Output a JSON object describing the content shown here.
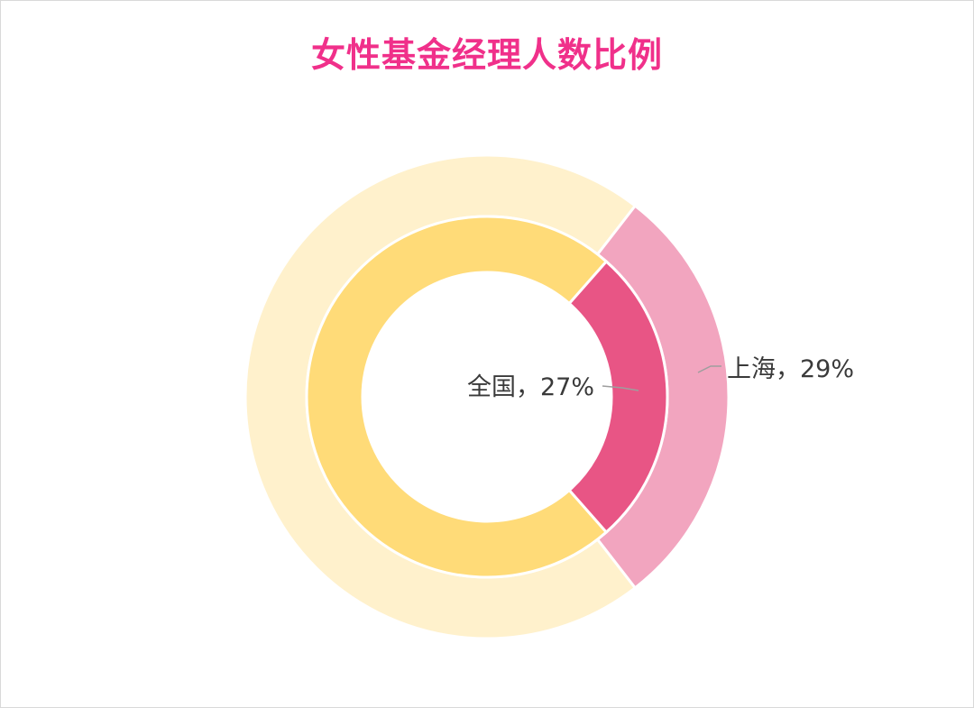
{
  "chart_data": {
    "type": "pie",
    "title": "女性基金经理人数比例",
    "rings": [
      {
        "ring": "inner",
        "label": "全国",
        "value": 27,
        "label_text": "全国，27%",
        "colors": {
          "share": "#E85585",
          "rest": "#FFDB78"
        }
      },
      {
        "ring": "outer",
        "label": "上海",
        "value": 29,
        "label_text": "上海，29%",
        "colors": {
          "share": "#F2A5BF",
          "rest": "#FFF1CC"
        }
      }
    ]
  },
  "colors": {
    "title": "#F0308A",
    "leader_line": "#9E9E9E",
    "border": "#D9D9D9"
  }
}
